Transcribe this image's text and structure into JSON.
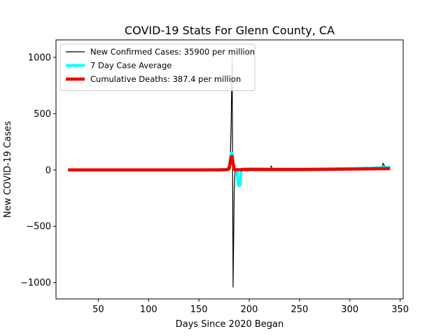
{
  "chart_data": {
    "type": "line",
    "title": "COVID-19 Stats For Glenn County, CA",
    "xlabel": "Days Since 2020 Began",
    "ylabel": "New COVID-19 Cases",
    "xlim": [
      8,
      353
    ],
    "ylim": [
      -1145,
      1155
    ],
    "xticks": [
      50,
      100,
      150,
      200,
      250,
      300,
      350
    ],
    "yticks": [
      -1000,
      -500,
      0,
      500,
      1000
    ],
    "xtick_labels": [
      "50",
      "100",
      "150",
      "200",
      "250",
      "300",
      "350"
    ],
    "ytick_labels": [
      "−1000",
      "−500",
      "0",
      "500",
      "1000"
    ],
    "grid": false,
    "legend_position": "top-left",
    "series": [
      {
        "name": "New Confirmed Cases: 35900 per million",
        "color": "#000000",
        "line_width": 1.2,
        "x": [
          20,
          100,
          165,
          172,
          178,
          181,
          182,
          183,
          184,
          185,
          186,
          190,
          200,
          220,
          221,
          222,
          223,
          224,
          240,
          252,
          253,
          254,
          270,
          300,
          315,
          316,
          317,
          325,
          326,
          327,
          332,
          333,
          334,
          335,
          336,
          340
        ],
        "y": [
          0,
          0,
          2,
          5,
          15,
          40,
          400,
          1000,
          -1040,
          -200,
          5,
          3,
          5,
          8,
          20,
          35,
          5,
          10,
          8,
          5,
          15,
          5,
          8,
          10,
          12,
          25,
          8,
          15,
          30,
          10,
          20,
          60,
          45,
          15,
          20,
          25
        ]
      },
      {
        "name": "7 Day Case Average",
        "color": "#00ffff",
        "line_width": 4,
        "x": [
          20,
          100,
          170,
          178,
          180,
          182,
          183,
          184,
          186,
          188,
          189,
          190,
          191,
          192,
          194,
          200,
          220,
          250,
          280,
          300,
          320,
          330,
          340
        ],
        "y": [
          0,
          0,
          2,
          8,
          30,
          150,
          150,
          40,
          5,
          -10,
          -130,
          -140,
          -130,
          5,
          10,
          12,
          10,
          8,
          10,
          12,
          15,
          20,
          25
        ]
      },
      {
        "name": "Cumulative Deaths: 387.4 per million",
        "color": "#ee0000",
        "line_width": 4.5,
        "x": [
          20,
          100,
          150,
          170,
          178,
          180,
          181,
          182,
          183,
          184,
          185,
          186,
          200,
          250,
          300,
          340
        ],
        "y": [
          0,
          0,
          0,
          1,
          2,
          10,
          60,
          115,
          120,
          60,
          5,
          2,
          3,
          4,
          8,
          12
        ]
      }
    ]
  }
}
